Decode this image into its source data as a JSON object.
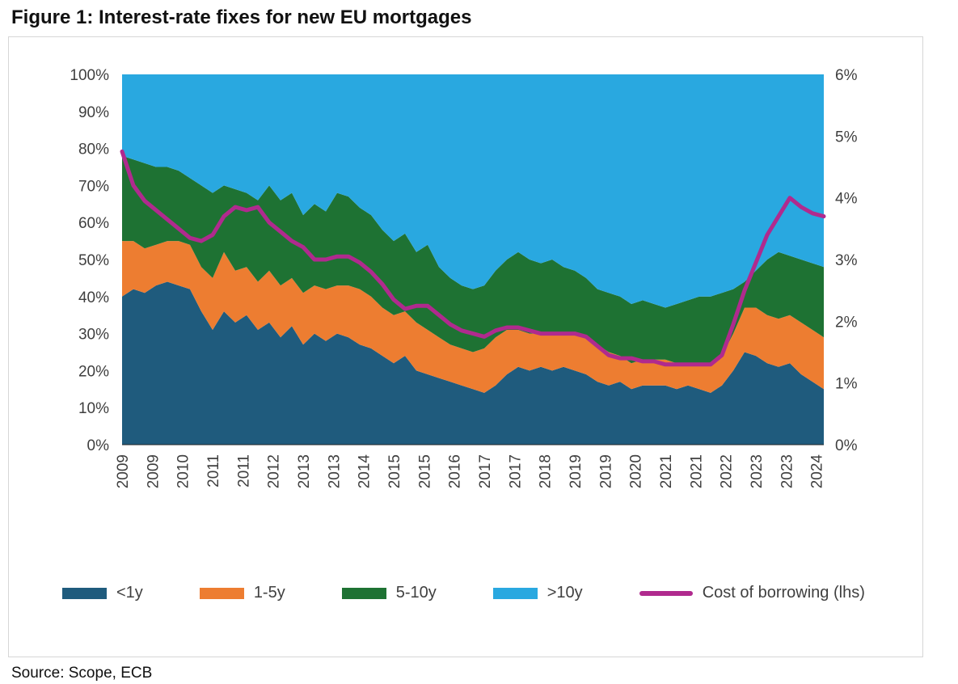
{
  "page": {
    "title": "Figure 1: Interest-rate fixes for new EU mortgages",
    "source": "Source: Scope, ECB"
  },
  "chart_data": {
    "type": "area",
    "stacked": true,
    "stack_mode": "percent",
    "title": "Figure 1: Interest-rate fixes for new EU mortgages",
    "legend_position": "bottom",
    "grid": false,
    "left_axis": {
      "min": 0,
      "max": 100,
      "step": 10,
      "ticks": [
        "0%",
        "10%",
        "20%",
        "30%",
        "40%",
        "50%",
        "60%",
        "70%",
        "80%",
        "90%",
        "100%"
      ]
    },
    "right_axis": {
      "min": 0,
      "max": 6,
      "step": 1,
      "ticks": [
        "0%",
        "1%",
        "2%",
        "3%",
        "4%",
        "5%",
        "6%"
      ]
    },
    "x_range": [
      2009.0,
      2024.5
    ],
    "x": [
      2009,
      2009.25,
      2009.5,
      2009.75,
      2010,
      2010.25,
      2010.5,
      2010.75,
      2011,
      2011.25,
      2011.5,
      2011.75,
      2012,
      2012.25,
      2012.5,
      2012.75,
      2013,
      2013.25,
      2013.5,
      2013.75,
      2014,
      2014.25,
      2014.5,
      2014.75,
      2015,
      2015.25,
      2015.5,
      2015.75,
      2016,
      2016.25,
      2016.5,
      2016.75,
      2017,
      2017.25,
      2017.5,
      2017.75,
      2018,
      2018.25,
      2018.5,
      2018.75,
      2019,
      2019.25,
      2019.5,
      2019.75,
      2020,
      2020.25,
      2020.5,
      2020.75,
      2021,
      2021.25,
      2021.5,
      2021.75,
      2022,
      2022.25,
      2022.5,
      2022.75,
      2023,
      2023.25,
      2023.5,
      2023.75,
      2024,
      2024.25,
      2024.5
    ],
    "series": [
      {
        "name": "<1y",
        "color": "#1f5b7d",
        "values": [
          40,
          42,
          41,
          43,
          44,
          43,
          42,
          36,
          31,
          36,
          33,
          35,
          31,
          33,
          29,
          32,
          27,
          30,
          28,
          30,
          29,
          27,
          26,
          24,
          22,
          24,
          20,
          19,
          18,
          17,
          16,
          15,
          14,
          16,
          19,
          21,
          20,
          21,
          20,
          21,
          20,
          19,
          17,
          16,
          17,
          15,
          16,
          16,
          16,
          15,
          16,
          15,
          14,
          16,
          20,
          25,
          24,
          22,
          21,
          22,
          19,
          17,
          15
        ]
      },
      {
        "name": "1-5y",
        "color": "#ed7d31",
        "values": [
          15,
          13,
          12,
          11,
          11,
          12,
          12,
          12,
          14,
          16,
          14,
          13,
          13,
          14,
          14,
          13,
          14,
          13,
          14,
          13,
          14,
          15,
          14,
          13,
          13,
          12,
          13,
          12,
          11,
          10,
          10,
          10,
          12,
          13,
          12,
          10,
          10,
          9,
          10,
          9,
          10,
          10,
          10,
          9,
          7,
          7,
          7,
          7,
          7,
          7,
          6,
          7,
          8,
          8,
          10,
          12,
          13,
          13,
          13,
          13,
          14,
          14,
          14
        ]
      },
      {
        "name": "5-10y",
        "color": "#1e7233",
        "values": [
          23,
          22,
          23,
          21,
          20,
          19,
          18,
          22,
          23,
          18,
          22,
          20,
          22,
          23,
          23,
          23,
          21,
          22,
          21,
          25,
          24,
          22,
          22,
          21,
          20,
          21,
          19,
          23,
          19,
          18,
          17,
          17,
          17,
          18,
          19,
          21,
          20,
          19,
          20,
          18,
          17,
          16,
          15,
          16,
          16,
          16,
          16,
          15,
          14,
          16,
          17,
          18,
          18,
          17,
          12,
          7,
          10,
          15,
          18,
          16,
          17,
          18,
          19
        ]
      },
      {
        "name": ">10y",
        "color": "#29a8e0",
        "values": [
          22,
          23,
          24,
          25,
          25,
          26,
          28,
          30,
          32,
          30,
          31,
          32,
          34,
          30,
          34,
          32,
          38,
          35,
          37,
          32,
          33,
          36,
          38,
          42,
          45,
          43,
          48,
          46,
          52,
          55,
          57,
          58,
          57,
          53,
          50,
          48,
          50,
          51,
          50,
          52,
          53,
          55,
          58,
          59,
          60,
          62,
          61,
          62,
          63,
          62,
          61,
          60,
          60,
          59,
          58,
          56,
          53,
          50,
          48,
          49,
          50,
          51,
          52
        ]
      }
    ],
    "line_series": {
      "name": "Cost of borrowing (lhs)",
      "color": "#b02a8e",
      "axis": "right",
      "values": [
        4.75,
        4.2,
        3.95,
        3.8,
        3.65,
        3.5,
        3.35,
        3.3,
        3.4,
        3.7,
        3.85,
        3.8,
        3.85,
        3.6,
        3.45,
        3.3,
        3.2,
        3.0,
        3.0,
        3.05,
        3.05,
        2.95,
        2.8,
        2.6,
        2.35,
        2.2,
        2.25,
        2.25,
        2.1,
        1.95,
        1.85,
        1.8,
        1.75,
        1.85,
        1.9,
        1.9,
        1.85,
        1.8,
        1.8,
        1.8,
        1.8,
        1.75,
        1.6,
        1.45,
        1.4,
        1.4,
        1.35,
        1.35,
        1.3,
        1.3,
        1.3,
        1.3,
        1.3,
        1.45,
        1.95,
        2.5,
        2.95,
        3.4,
        3.7,
        4.0,
        3.85,
        3.75,
        3.7
      ]
    },
    "x_ticks": [
      {
        "pos": 2009.0,
        "label": "2009"
      },
      {
        "pos": 2009.667,
        "label": "2009"
      },
      {
        "pos": 2010.333,
        "label": "2010"
      },
      {
        "pos": 2011.0,
        "label": "2011"
      },
      {
        "pos": 2011.667,
        "label": "2011"
      },
      {
        "pos": 2012.333,
        "label": "2012"
      },
      {
        "pos": 2013.0,
        "label": "2013"
      },
      {
        "pos": 2013.667,
        "label": "2013"
      },
      {
        "pos": 2014.333,
        "label": "2014"
      },
      {
        "pos": 2015.0,
        "label": "2015"
      },
      {
        "pos": 2015.667,
        "label": "2015"
      },
      {
        "pos": 2016.333,
        "label": "2016"
      },
      {
        "pos": 2017.0,
        "label": "2017"
      },
      {
        "pos": 2017.667,
        "label": "2017"
      },
      {
        "pos": 2018.333,
        "label": "2018"
      },
      {
        "pos": 2019.0,
        "label": "2019"
      },
      {
        "pos": 2019.667,
        "label": "2019"
      },
      {
        "pos": 2020.333,
        "label": "2020"
      },
      {
        "pos": 2021.0,
        "label": "2021"
      },
      {
        "pos": 2021.667,
        "label": "2021"
      },
      {
        "pos": 2022.333,
        "label": "2022"
      },
      {
        "pos": 2023.0,
        "label": "2023"
      },
      {
        "pos": 2023.667,
        "label": "2023"
      },
      {
        "pos": 2024.333,
        "label": "2024"
      }
    ]
  }
}
